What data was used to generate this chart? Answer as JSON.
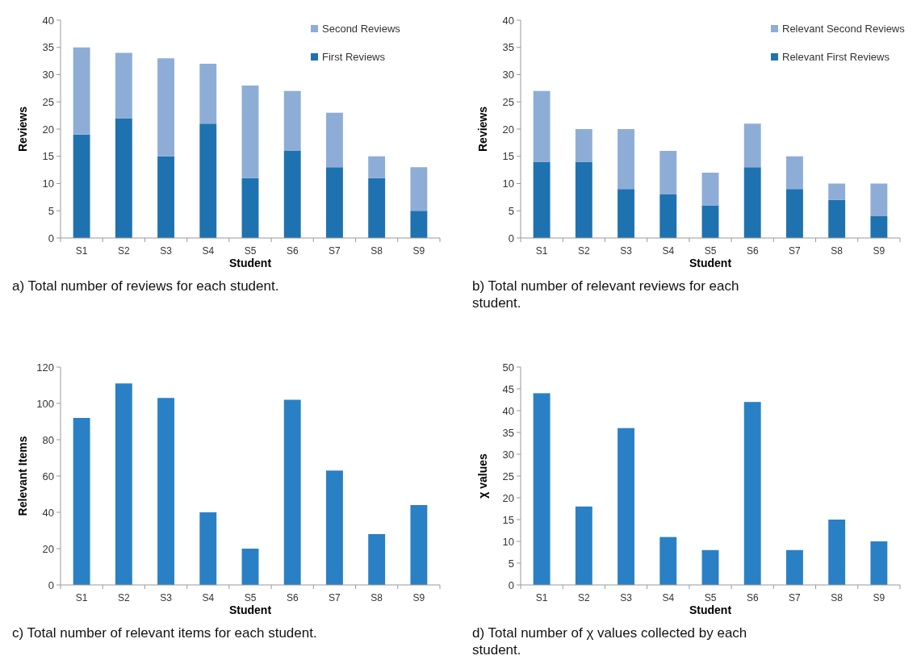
{
  "chart_data": [
    {
      "type": "bar",
      "stacked": true,
      "xlabel": "Student",
      "ylabel": "Reviews",
      "categories": [
        "S1",
        "S2",
        "S3",
        "S4",
        "S5",
        "S6",
        "S7",
        "S8",
        "S9"
      ],
      "ylim": [
        0,
        40
      ],
      "yticks": [
        0,
        5,
        10,
        15,
        20,
        25,
        30,
        35,
        40
      ],
      "legend": "top right",
      "annotations": [
        "a) Total number of reviews for each student."
      ],
      "series": [
        {
          "name": "First Reviews",
          "color": "#1f72b0",
          "values": [
            19,
            22,
            15,
            21,
            11,
            16,
            13,
            11,
            5
          ]
        },
        {
          "name": "Second Reviews",
          "color": "#8eadd6",
          "values": [
            16,
            12,
            18,
            11,
            17,
            11,
            10,
            4,
            8
          ]
        }
      ]
    },
    {
      "type": "bar",
      "stacked": true,
      "xlabel": "Student",
      "ylabel": "Reviews",
      "categories": [
        "S1",
        "S2",
        "S3",
        "S4",
        "S5",
        "S6",
        "S7",
        "S8",
        "S9"
      ],
      "ylim": [
        0,
        40
      ],
      "yticks": [
        0,
        5,
        10,
        15,
        20,
        25,
        30,
        35,
        40
      ],
      "legend": "top right",
      "annotations": [
        "b) Total number of relevant reviews for each student."
      ],
      "series": [
        {
          "name": "Relevant First Reviews",
          "color": "#1f72b0",
          "values": [
            14,
            14,
            9,
            8,
            6,
            13,
            9,
            7,
            4
          ]
        },
        {
          "name": "Relevant Second Reviews",
          "color": "#8eadd6",
          "values": [
            13,
            6,
            11,
            8,
            6,
            8,
            6,
            3,
            6
          ]
        }
      ]
    },
    {
      "type": "bar",
      "xlabel": "Student",
      "ylabel": "Relevant Items",
      "categories": [
        "S1",
        "S2",
        "S3",
        "S4",
        "S5",
        "S6",
        "S7",
        "S8",
        "S9"
      ],
      "ylim": [
        0,
        120
      ],
      "yticks": [
        0,
        20,
        40,
        60,
        80,
        100,
        120
      ],
      "annotations": [
        "c) Total number of relevant items for each student."
      ],
      "series": [
        {
          "color": "#2a80c4",
          "values": [
            92,
            111,
            103,
            40,
            20,
            102,
            63,
            28,
            44
          ]
        }
      ]
    },
    {
      "type": "bar",
      "xlabel": "Student",
      "ylabel": "χ values",
      "categories": [
        "S1",
        "S2",
        "S3",
        "S4",
        "S5",
        "S6",
        "S7",
        "S8",
        "S9"
      ],
      "ylim": [
        0,
        50
      ],
      "yticks": [
        0,
        5,
        10,
        15,
        20,
        25,
        30,
        35,
        40,
        45,
        50
      ],
      "annotations": [
        "d) Total number of χ values collected by each student."
      ],
      "series": [
        {
          "color": "#2a80c4",
          "values": [
            44,
            18,
            36,
            11,
            8,
            42,
            8,
            15,
            10
          ]
        }
      ]
    }
  ]
}
